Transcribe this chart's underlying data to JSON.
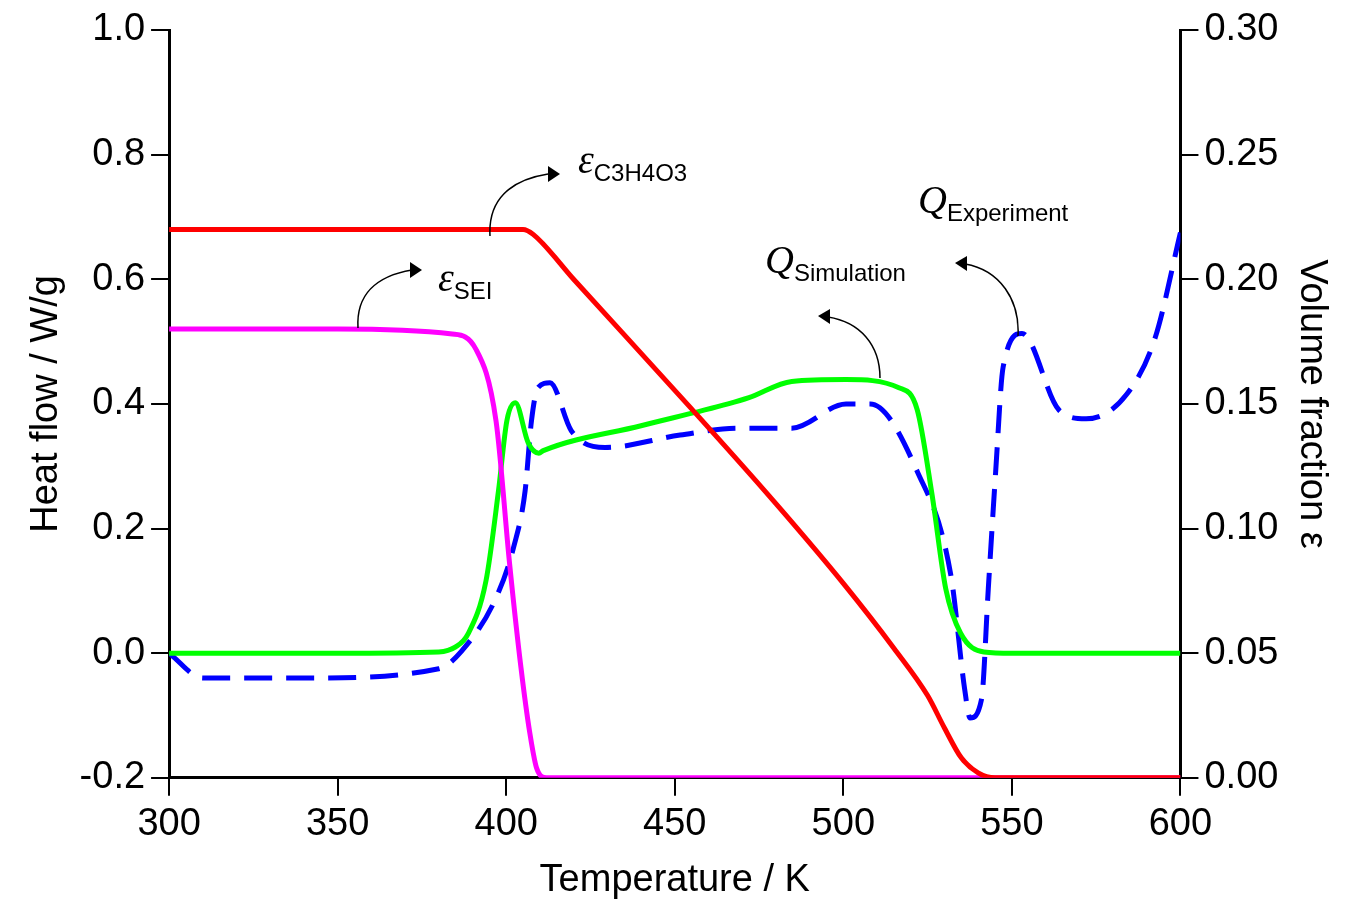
{
  "chart_data": {
    "type": "line",
    "xlabel": "Temperature / K",
    "ylabel": "Heat flow / W/g",
    "y2label": "Volume fraction ε",
    "xlim": [
      300,
      600
    ],
    "xticks": [
      300,
      350,
      400,
      450,
      500,
      550,
      600
    ],
    "ylim": [
      -0.2,
      1.0
    ],
    "yticks": [
      {
        "value": -0.2,
        "label": "-0.2"
      },
      {
        "value": 0,
        "label": "0.0"
      },
      {
        "value": 0.2,
        "label": "0.2"
      },
      {
        "value": 0.4,
        "label": "0.4"
      },
      {
        "value": 0.6,
        "label": "0.6"
      },
      {
        "value": 0.8,
        "label": "0.8"
      },
      {
        "value": 1.0,
        "label": "1.0"
      }
    ],
    "y2lim": [
      0,
      0.3
    ],
    "y2ticks": [
      {
        "value": 0,
        "label": "0.00"
      },
      {
        "value": 0.05,
        "label": "0.05"
      },
      {
        "value": 0.1,
        "label": "0.10"
      },
      {
        "value": 0.15,
        "label": "0.15"
      },
      {
        "value": 0.2,
        "label": "0.20"
      },
      {
        "value": 0.25,
        "label": "0.25"
      },
      {
        "value": 0.3,
        "label": "0.30"
      }
    ],
    "grid": false,
    "legend": false,
    "marker": "none",
    "series": [
      {
        "name": "ε$_{C3H4O3}$",
        "color": "#ff0000",
        "axis": "y2",
        "line_style": "solid",
        "x": [
          300,
          350,
          400,
          405,
          408,
          420,
          455,
          480,
          500,
          515,
          525,
          530,
          535,
          540,
          545,
          600
        ],
        "values": [
          0.22,
          0.22,
          0.22,
          0.22,
          0.218,
          0.2,
          0.148,
          0.11,
          0.078,
          0.052,
          0.033,
          0.02,
          0.008,
          0.002,
          0,
          0
        ]
      },
      {
        "name": "ε$_{SEI}$",
        "color": "#ff00ff",
        "axis": "y2",
        "line_style": "solid",
        "x": [
          300,
          350,
          384,
          391,
          397,
          401,
          404.4,
          407,
          409,
          412,
          450,
          600
        ],
        "values": [
          0.18,
          0.18,
          0.178,
          0.172,
          0.143,
          0.086,
          0.044,
          0.018,
          0.004,
          0,
          0,
          0
        ]
      },
      {
        "name": "Q$_{Simulation}$",
        "color": "#00ff00",
        "line_style": "solid",
        "x": [
          300,
          350,
          380,
          385,
          388.6,
          394,
          397.7,
          400.2,
          402.7,
          406.5,
          409.7,
          411,
          440,
          465.8,
          472,
          484.7,
          500.8,
          516.5,
          521.9,
          526.3,
          530.4,
          534.8,
          541.7,
          550,
          600
        ],
        "values": [
          0,
          0,
          0.002,
          0.01,
          0.03,
          0.116,
          0.26,
          0.373,
          0.402,
          0.338,
          0.321,
          0.325,
          0.365,
          0.4,
          0.41,
          0.436,
          0.439,
          0.426,
          0.391,
          0.255,
          0.103,
          0.032,
          0.002,
          0,
          0
        ]
      },
      {
        "name": "Q$_{Experiment}$",
        "color": "#0000ff",
        "axis": "y",
        "line_style": "dashed",
        "x": [
          300,
          310,
          340,
          380,
          386.7,
          397,
          402.4,
          405.6,
          407.5,
          409.4,
          413,
          419.3,
          429.3,
          451.6,
          468.6,
          484.7,
          500.8,
          508,
          521.9,
          531.9,
          536,
          537.6,
          541,
          543,
          545.2,
          547.4,
          553,
          564,
          572,
          584,
          592.5,
          600
        ],
        "values": [
          0,
          -0.04,
          -0.04,
          -0.025,
          0.003,
          0.089,
          0.174,
          0.26,
          0.373,
          0.426,
          0.434,
          0.357,
          0.33,
          0.35,
          0.361,
          0.361,
          0.4,
          0.4,
          0.292,
          0.125,
          -0.058,
          -0.104,
          -0.074,
          0.103,
          0.292,
          0.459,
          0.513,
          0.39,
          0.376,
          0.415,
          0.506,
          0.675
        ]
      }
    ]
  }
}
